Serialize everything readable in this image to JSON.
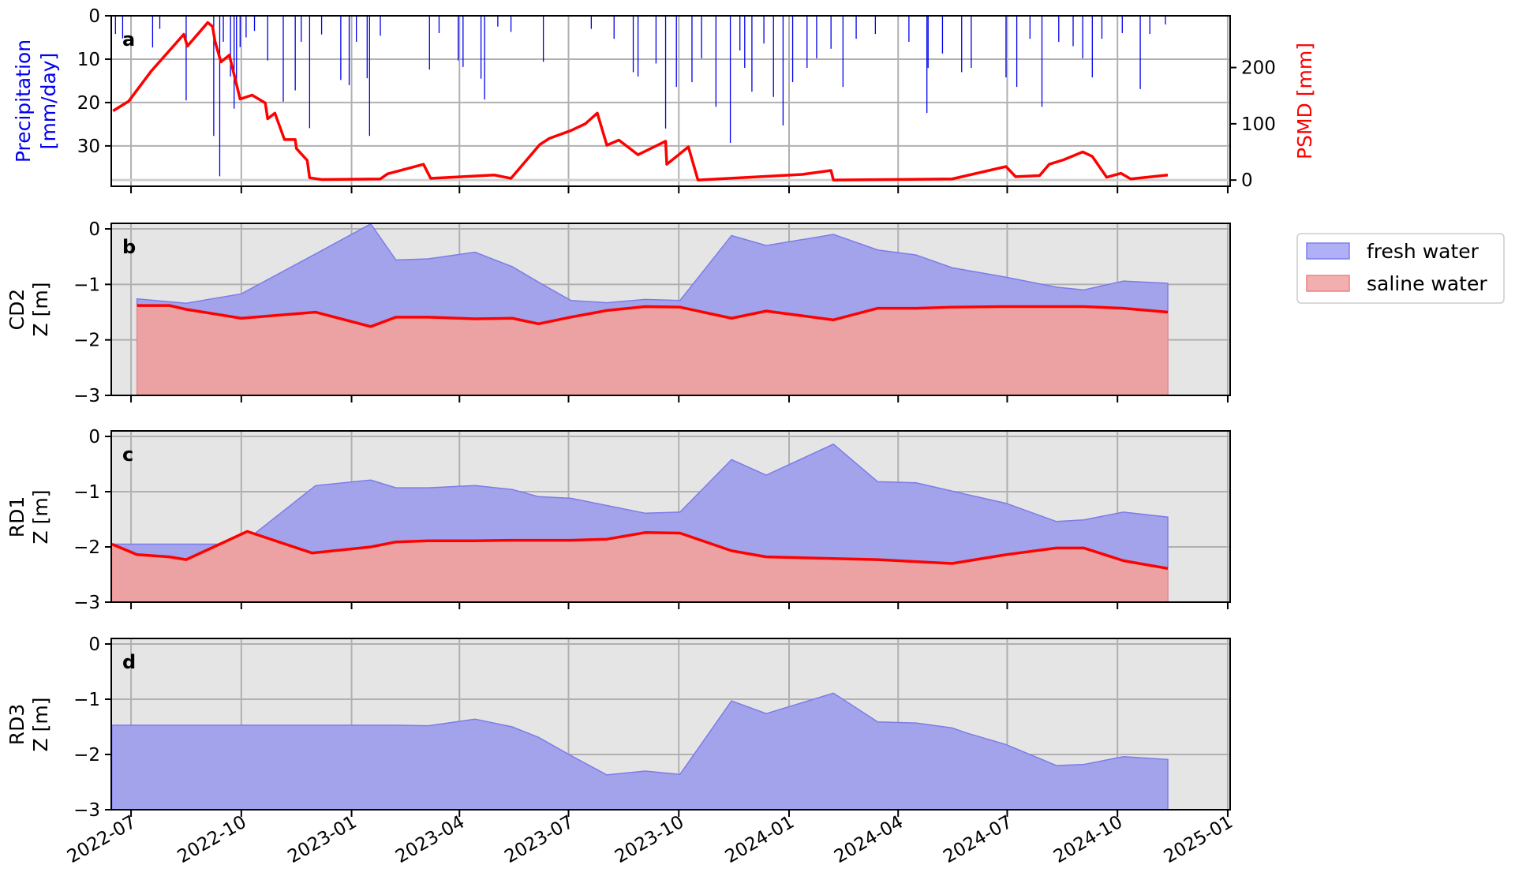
{
  "chart_data": [
    {
      "panel": "a",
      "type": "bar+line",
      "ylabel_left": [
        "Precipitation",
        "[mm/day]"
      ],
      "ylabel_right": "PSMD [mm]",
      "ylim_left": [
        39.3,
        0
      ],
      "ylim_right": [
        -11,
        292
      ],
      "yticks_left": [
        "0",
        "10",
        "20",
        "30"
      ],
      "yticks_right": [
        "0",
        "100",
        "200"
      ],
      "colors": {
        "precipitation": "#0000ee",
        "psmd": "#ff0000"
      },
      "precipitation": [
        [
          "2022-06-18",
          4.2
        ],
        [
          "2022-06-24",
          5.2
        ],
        [
          "2022-07-19",
          7.3
        ],
        [
          "2022-07-25",
          3
        ],
        [
          "2022-08-16",
          19.5
        ],
        [
          "2022-09-08",
          27.7
        ],
        [
          "2022-09-13",
          37
        ],
        [
          "2022-09-16",
          6
        ],
        [
          "2022-09-22",
          14
        ],
        [
          "2022-09-25",
          21.4
        ],
        [
          "2022-09-27",
          15.7
        ],
        [
          "2022-09-30",
          7.2
        ],
        [
          "2022-10-05",
          5
        ],
        [
          "2022-10-12",
          3.5
        ],
        [
          "2022-10-23",
          10.3
        ],
        [
          "2022-11-05",
          19.8
        ],
        [
          "2022-11-15",
          17.2
        ],
        [
          "2022-11-20",
          6
        ],
        [
          "2022-11-27",
          25.9
        ],
        [
          "2022-12-07",
          4.3
        ],
        [
          "2022-12-23",
          14.8
        ],
        [
          "2022-12-30",
          16
        ],
        [
          "2023-01-05",
          6
        ],
        [
          "2023-01-14",
          14.4
        ],
        [
          "2023-01-16",
          27.7
        ],
        [
          "2023-01-25",
          4.6
        ],
        [
          "2023-03-07",
          12.4
        ],
        [
          "2023-03-15",
          4
        ],
        [
          "2023-03-31",
          10.3
        ],
        [
          "2023-04-04",
          11.8
        ],
        [
          "2023-04-19",
          14.5
        ],
        [
          "2023-04-22",
          19.3
        ],
        [
          "2023-05-03",
          2.5
        ],
        [
          "2023-05-14",
          3.7
        ],
        [
          "2023-06-10",
          10.6
        ],
        [
          "2023-07-20",
          3
        ],
        [
          "2023-08-08",
          5.3
        ],
        [
          "2023-08-24",
          13
        ],
        [
          "2023-08-28",
          14
        ],
        [
          "2023-09-12",
          11
        ],
        [
          "2023-09-20",
          26
        ],
        [
          "2023-09-29",
          16.4
        ],
        [
          "2023-10-12",
          15.3
        ],
        [
          "2023-10-20",
          9.8
        ],
        [
          "2023-11-01",
          21
        ],
        [
          "2023-11-13",
          29.3
        ],
        [
          "2023-11-21",
          8
        ],
        [
          "2023-11-25",
          12
        ],
        [
          "2023-12-01",
          17.5
        ],
        [
          "2023-12-11",
          6.4
        ],
        [
          "2023-12-19",
          18.7
        ],
        [
          "2023-12-27",
          25.3
        ],
        [
          "2024-01-04",
          15.3
        ],
        [
          "2024-01-16",
          12
        ],
        [
          "2024-01-24",
          9.8
        ],
        [
          "2024-02-05",
          7.6
        ],
        [
          "2024-02-15",
          16.4
        ],
        [
          "2024-02-26",
          5.3
        ],
        [
          "2024-03-13",
          4.2
        ],
        [
          "2024-04-10",
          6
        ],
        [
          "2024-04-25",
          22.4
        ],
        [
          "2024-04-26",
          12
        ],
        [
          "2024-05-08",
          8.7
        ],
        [
          "2024-05-24",
          13
        ],
        [
          "2024-06-01",
          12
        ],
        [
          "2024-06-30",
          14.2
        ],
        [
          "2024-07-09",
          16.4
        ],
        [
          "2024-07-20",
          5.3
        ],
        [
          "2024-07-30",
          21
        ],
        [
          "2024-08-13",
          6
        ],
        [
          "2024-08-25",
          7
        ],
        [
          "2024-09-02",
          9.8
        ],
        [
          "2024-09-10",
          14.2
        ],
        [
          "2024-09-18",
          5.3
        ],
        [
          "2024-10-05",
          4
        ],
        [
          "2024-10-20",
          16.9
        ],
        [
          "2024-10-28",
          4.2
        ],
        [
          "2024-11-10",
          2
        ]
      ],
      "psmd": [
        [
          "2022-06-16",
          123
        ],
        [
          "2022-06-29",
          140
        ],
        [
          "2022-07-18",
          194
        ],
        [
          "2022-08-14",
          259
        ],
        [
          "2022-08-17",
          238
        ],
        [
          "2022-09-03",
          280
        ],
        [
          "2022-09-07",
          273
        ],
        [
          "2022-09-09",
          247
        ],
        [
          "2022-09-14",
          210
        ],
        [
          "2022-09-21",
          222
        ],
        [
          "2022-09-30",
          144
        ],
        [
          "2022-10-10",
          151
        ],
        [
          "2022-10-21",
          137
        ],
        [
          "2022-10-23",
          109
        ],
        [
          "2022-10-29",
          119
        ],
        [
          "2022-11-06",
          72
        ],
        [
          "2022-11-15",
          72
        ],
        [
          "2022-11-16",
          56
        ],
        [
          "2022-11-25",
          35
        ],
        [
          "2022-11-27",
          4
        ],
        [
          "2022-12-07",
          1
        ],
        [
          "2023-01-25",
          2
        ],
        [
          "2023-01-31",
          11
        ],
        [
          "2023-03-02",
          28
        ],
        [
          "2023-03-08",
          3
        ],
        [
          "2023-04-30",
          9
        ],
        [
          "2023-05-14",
          3
        ],
        [
          "2023-06-07",
          63
        ],
        [
          "2023-06-15",
          74
        ],
        [
          "2023-07-03",
          88
        ],
        [
          "2023-07-15",
          100
        ],
        [
          "2023-07-25",
          119
        ],
        [
          "2023-08-02",
          62
        ],
        [
          "2023-08-12",
          71
        ],
        [
          "2023-08-28",
          45
        ],
        [
          "2023-09-20",
          69
        ],
        [
          "2023-09-21",
          28
        ],
        [
          "2023-10-09",
          59
        ],
        [
          "2023-10-17",
          0
        ],
        [
          "2024-01-12",
          10
        ],
        [
          "2024-02-05",
          17
        ],
        [
          "2024-02-07",
          0
        ],
        [
          "2024-05-16",
          2
        ],
        [
          "2024-06-30",
          24
        ],
        [
          "2024-07-08",
          6
        ],
        [
          "2024-07-28",
          8
        ],
        [
          "2024-08-05",
          28
        ],
        [
          "2024-08-17",
          36
        ],
        [
          "2024-09-02",
          50
        ],
        [
          "2024-09-10",
          42
        ],
        [
          "2024-09-22",
          5
        ],
        [
          "2024-10-04",
          12
        ],
        [
          "2024-10-12",
          2
        ],
        [
          "2024-11-12",
          9
        ]
      ]
    },
    {
      "panel": "b",
      "type": "area",
      "ylabel": [
        "CD2",
        "Z [m]"
      ],
      "ylim": [
        -3,
        0.1
      ],
      "yticks": [
        "0",
        "−1",
        "−2",
        "−3"
      ],
      "fresh_water": [
        [
          "2022-07-06",
          -1.26
        ],
        [
          "2022-08-16",
          -1.34
        ],
        [
          "2022-10-01",
          -1.17
        ],
        [
          "2022-12-02",
          -0.45
        ],
        [
          "2023-01-17",
          0.09
        ],
        [
          "2023-02-07",
          -0.56
        ],
        [
          "2023-03-06",
          -0.54
        ],
        [
          "2023-04-14",
          -0.42
        ],
        [
          "2023-05-15",
          -0.68
        ],
        [
          "2023-06-06",
          -0.96
        ],
        [
          "2023-07-03",
          -1.29
        ],
        [
          "2023-08-02",
          -1.33
        ],
        [
          "2023-09-03",
          -1.27
        ],
        [
          "2023-10-02",
          -1.29
        ],
        [
          "2023-11-14",
          -0.12
        ],
        [
          "2023-12-13",
          -0.3
        ],
        [
          "2024-02-07",
          -0.1
        ],
        [
          "2024-03-15",
          -0.38
        ],
        [
          "2024-04-16",
          -0.47
        ],
        [
          "2024-05-16",
          -0.7
        ],
        [
          "2024-06-30",
          -0.87
        ],
        [
          "2024-08-11",
          -1.05
        ],
        [
          "2024-09-03",
          -1.1
        ],
        [
          "2024-10-06",
          -0.94
        ],
        [
          "2024-11-12",
          -0.98
        ]
      ],
      "saline_water": [
        [
          "2022-07-06",
          -1.38
        ],
        [
          "2022-08-02",
          -1.38
        ],
        [
          "2022-08-16",
          -1.45
        ],
        [
          "2022-10-01",
          -1.61
        ],
        [
          "2022-12-02",
          -1.5
        ],
        [
          "2023-01-17",
          -1.76
        ],
        [
          "2023-02-07",
          -1.59
        ],
        [
          "2023-03-06",
          -1.59
        ],
        [
          "2023-04-14",
          -1.62
        ],
        [
          "2023-05-15",
          -1.61
        ],
        [
          "2023-06-06",
          -1.71
        ],
        [
          "2023-07-03",
          -1.59
        ],
        [
          "2023-08-02",
          -1.47
        ],
        [
          "2023-09-03",
          -1.4
        ],
        [
          "2023-10-02",
          -1.41
        ],
        [
          "2023-11-14",
          -1.61
        ],
        [
          "2023-12-13",
          -1.48
        ],
        [
          "2024-02-07",
          -1.64
        ],
        [
          "2024-03-15",
          -1.43
        ],
        [
          "2024-04-16",
          -1.43
        ],
        [
          "2024-05-16",
          -1.41
        ],
        [
          "2024-06-30",
          -1.4
        ],
        [
          "2024-08-11",
          -1.4
        ],
        [
          "2024-09-03",
          -1.4
        ],
        [
          "2024-10-06",
          -1.43
        ],
        [
          "2024-11-12",
          -1.5
        ]
      ]
    },
    {
      "panel": "c",
      "type": "area",
      "ylabel": [
        "RD1",
        "Z [m]"
      ],
      "ylim": [
        -3,
        0.1
      ],
      "yticks": [
        "0",
        "−1",
        "−2",
        "−3"
      ],
      "fresh_water": [
        [
          "2022-06-15",
          -1.95
        ],
        [
          "2022-10-01",
          -1.95
        ],
        [
          "2022-12-02",
          -0.89
        ],
        [
          "2023-01-17",
          -0.79
        ],
        [
          "2023-02-07",
          -0.93
        ],
        [
          "2023-03-06",
          -0.93
        ],
        [
          "2023-04-14",
          -0.89
        ],
        [
          "2023-05-15",
          -0.96
        ],
        [
          "2023-06-06",
          -1.09
        ],
        [
          "2023-07-03",
          -1.12
        ],
        [
          "2023-08-02",
          -1.25
        ],
        [
          "2023-09-03",
          -1.39
        ],
        [
          "2023-10-02",
          -1.37
        ],
        [
          "2023-11-14",
          -0.42
        ],
        [
          "2023-12-13",
          -0.7
        ],
        [
          "2024-02-07",
          -0.14
        ],
        [
          "2024-03-15",
          -0.82
        ],
        [
          "2024-04-16",
          -0.84
        ],
        [
          "2024-05-28",
          -1.05
        ],
        [
          "2024-06-30",
          -1.21
        ],
        [
          "2024-08-11",
          -1.54
        ],
        [
          "2024-09-03",
          -1.51
        ],
        [
          "2024-10-06",
          -1.37
        ],
        [
          "2024-11-12",
          -1.46
        ]
      ],
      "saline_water": [
        [
          "2022-06-15",
          -1.95
        ],
        [
          "2022-07-06",
          -2.14
        ],
        [
          "2022-08-02",
          -2.18
        ],
        [
          "2022-08-16",
          -2.23
        ],
        [
          "2022-10-06",
          -1.72
        ],
        [
          "2022-11-29",
          -2.11
        ],
        [
          "2023-01-17",
          -2.0
        ],
        [
          "2023-02-07",
          -1.91
        ],
        [
          "2023-03-06",
          -1.89
        ],
        [
          "2023-04-14",
          -1.89
        ],
        [
          "2023-05-15",
          -1.88
        ],
        [
          "2023-07-03",
          -1.88
        ],
        [
          "2023-08-02",
          -1.86
        ],
        [
          "2023-09-03",
          -1.74
        ],
        [
          "2023-10-02",
          -1.75
        ],
        [
          "2023-11-14",
          -2.07
        ],
        [
          "2023-12-13",
          -2.18
        ],
        [
          "2024-02-07",
          -2.21
        ],
        [
          "2024-03-15",
          -2.23
        ],
        [
          "2024-05-16",
          -2.3
        ],
        [
          "2024-06-30",
          -2.14
        ],
        [
          "2024-08-11",
          -2.02
        ],
        [
          "2024-09-03",
          -2.02
        ],
        [
          "2024-10-06",
          -2.25
        ],
        [
          "2024-11-12",
          -2.39
        ]
      ]
    },
    {
      "panel": "d",
      "type": "area",
      "ylabel": [
        "RD3",
        "Z [m]"
      ],
      "ylim": [
        -3,
        0.1
      ],
      "yticks": [
        "0",
        "−1",
        "−2",
        "−3"
      ],
      "fresh_water": [
        [
          "2022-06-15",
          -1.47
        ],
        [
          "2023-02-07",
          -1.47
        ],
        [
          "2023-03-06",
          -1.48
        ],
        [
          "2023-04-14",
          -1.36
        ],
        [
          "2023-05-15",
          -1.5
        ],
        [
          "2023-06-06",
          -1.69
        ],
        [
          "2023-07-03",
          -2.02
        ],
        [
          "2023-08-02",
          -2.37
        ],
        [
          "2023-09-03",
          -2.3
        ],
        [
          "2023-10-02",
          -2.36
        ],
        [
          "2023-11-14",
          -1.03
        ],
        [
          "2023-12-13",
          -1.26
        ],
        [
          "2024-02-07",
          -0.89
        ],
        [
          "2024-03-15",
          -1.41
        ],
        [
          "2024-04-16",
          -1.43
        ],
        [
          "2024-05-16",
          -1.52
        ],
        [
          "2024-05-28",
          -1.61
        ],
        [
          "2024-06-30",
          -1.82
        ],
        [
          "2024-08-11",
          -2.2
        ],
        [
          "2024-09-03",
          -2.18
        ],
        [
          "2024-10-06",
          -2.04
        ],
        [
          "2024-11-12",
          -2.09
        ]
      ],
      "saline_water": []
    }
  ],
  "x_axis": {
    "ticks": [
      "2022-07",
      "2022-10",
      "2023-01",
      "2023-04",
      "2023-07",
      "2023-10",
      "2024-01",
      "2024-04",
      "2024-07",
      "2024-10",
      "2025-01"
    ],
    "xlim": [
      "2022-06-15",
      "2025-01-03"
    ]
  },
  "legend": {
    "placement": "right",
    "items": [
      {
        "label": "fresh water",
        "fill": "#b0b0f6",
        "edge": "#7f7fee"
      },
      {
        "label": "saline water",
        "fill": "#f3afaf",
        "edge": "#ee8080"
      }
    ]
  },
  "colors": {
    "fresh": "#a3a3ec",
    "fresh_edge": "#7c7ce9",
    "saline": "#eca2a2",
    "saline_line": "#ff0000",
    "axes_bg": "#e5e5e5",
    "grid": "#b0b0b0"
  }
}
